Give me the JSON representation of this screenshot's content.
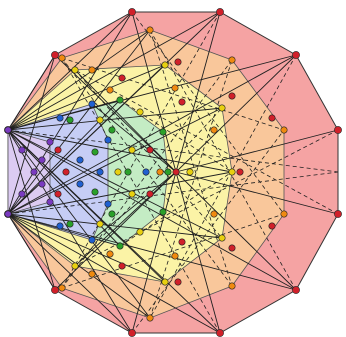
{
  "diagram": {
    "layer_colors": {
      "outer": "#f5a3a3",
      "orange": "#f9c79b",
      "yellow": "#fbf3a6",
      "green": "#c4ecc4",
      "blue": "#c6cdf5",
      "violet": "#dccbf2"
    },
    "vertex_colors": [
      "#d0202a",
      "#f08a10",
      "#e8d010",
      "#2aa02a",
      "#2060d0",
      "#7a3ac0"
    ],
    "line_color": "#202020"
  }
}
